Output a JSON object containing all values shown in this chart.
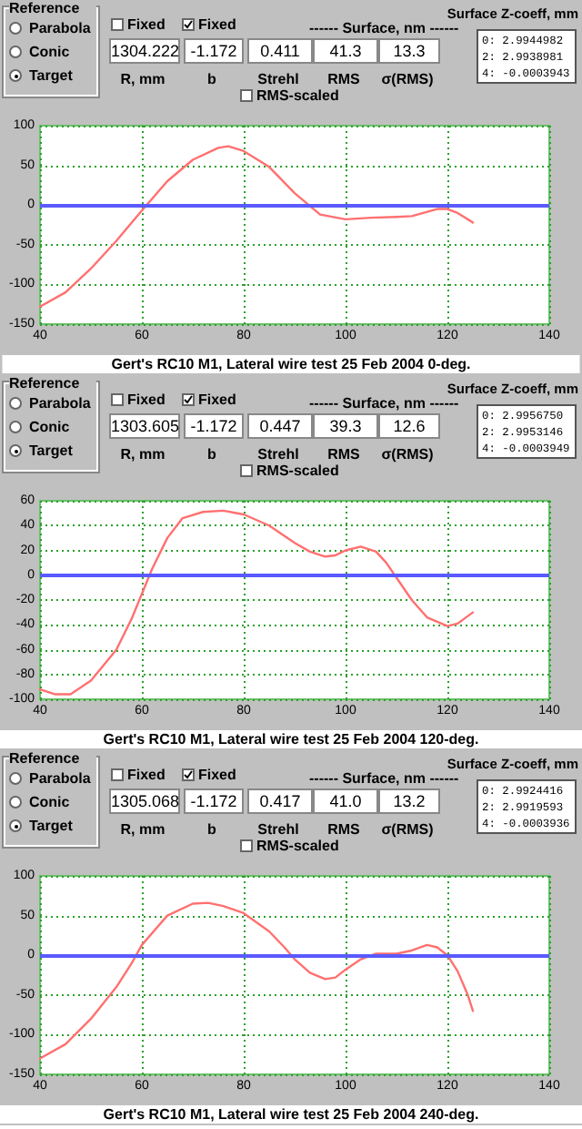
{
  "chart_data": [
    {
      "type": "other",
      "annotations": [
        "Reference",
        "Parabola",
        "Conic",
        "Target",
        "Fixed",
        "Fixed",
        "------ Surface, nm ------",
        "1304.222",
        "-1.172",
        "0.411",
        "41.3",
        "13.3",
        "R, mm",
        "b",
        "Strehl",
        "RMS",
        "σ(RMS)",
        "RMS-scaled",
        "Surface Z-coeff, mm",
        "0:  2.9944982",
        "2:  2.9938981",
        "4:  -0.0003943"
      ]
    },
    {
      "type": "line",
      "title": "Gert's RC10 M1, Lateral wire test 25 Feb 2004 0-deg.",
      "x": [
        40,
        45,
        50,
        55,
        60,
        65,
        70,
        75,
        77,
        80,
        85,
        90,
        95,
        100,
        105,
        110,
        113,
        118,
        120,
        122,
        125
      ],
      "values": [
        -128,
        -110,
        -80,
        -45,
        -7,
        30,
        57,
        72,
        74,
        68,
        48,
        15,
        -12,
        -18,
        -16,
        -15,
        -14,
        -5,
        -5,
        -10,
        -22
      ],
      "color": "#ff7070",
      "xlim": [
        40,
        140
      ],
      "xticks": [
        40,
        60,
        80,
        100,
        120,
        140
      ],
      "ylim": [
        -150,
        100
      ],
      "yticks": [
        -150,
        -100,
        -50,
        0,
        50,
        100
      ],
      "grid": true,
      "marker": "none",
      "ref_lines": [
        {
          "axis": "y",
          "value": 0,
          "color": "#5a5aff"
        }
      ]
    },
    {
      "type": "other",
      "annotations": [
        "Reference",
        "Parabola",
        "Conic",
        "Target",
        "Fixed",
        "Fixed",
        "------ Surface, nm ------",
        "1303.605",
        "-1.172",
        "0.447",
        "39.3",
        "12.6",
        "R, mm",
        "b",
        "Strehl",
        "RMS",
        "σ(RMS)",
        "RMS-scaled",
        "Surface Z-coeff, mm",
        "0:  2.9956750",
        "2:  2.9953146",
        "4:  -0.0003949"
      ]
    },
    {
      "type": "line",
      "title": "Gert's RC10 M1, Lateral wire test 25 Feb 2004 120-deg.",
      "x": [
        40,
        43,
        46,
        50,
        55,
        58,
        60,
        62,
        65,
        68,
        72,
        76,
        80,
        85,
        90,
        93,
        96,
        98,
        100,
        103,
        106,
        108,
        110,
        113,
        116,
        120,
        122,
        125
      ],
      "values": [
        -92,
        -96,
        -96,
        -85,
        -60,
        -35,
        -15,
        5,
        30,
        46,
        51,
        52,
        49,
        40,
        26,
        19,
        15,
        16,
        20,
        23,
        19,
        10,
        -2,
        -20,
        -34,
        -41,
        -39,
        -30
      ],
      "color": "#ff7070",
      "xlim": [
        40,
        140
      ],
      "xticks": [
        40,
        60,
        80,
        100,
        120,
        140
      ],
      "ylim": [
        -100,
        60
      ],
      "yticks": [
        -100,
        -80,
        -60,
        -40,
        -20,
        0,
        20,
        40,
        60
      ],
      "grid": true,
      "marker": "none",
      "ref_lines": [
        {
          "axis": "y",
          "value": 0,
          "color": "#5a5aff"
        }
      ]
    },
    {
      "type": "other",
      "annotations": [
        "Reference",
        "Parabola",
        "Conic",
        "Target",
        "Fixed",
        "Fixed",
        "------ Surface, nm ------",
        "1305.068",
        "-1.172",
        "0.417",
        "41.0",
        "13.2",
        "R, mm",
        "b",
        "Strehl",
        "RMS",
        "σ(RMS)",
        "RMS-scaled",
        "Surface Z-coeff, mm",
        "0:  2.9924416",
        "2:  2.9919593",
        "4:  -0.0003936"
      ]
    },
    {
      "type": "line",
      "title": "Gert's RC10 M1, Lateral wire test 25 Feb 2004 240-deg.",
      "x": [
        40,
        45,
        50,
        55,
        58,
        60,
        65,
        70,
        73,
        76,
        80,
        85,
        88,
        90,
        93,
        96,
        98,
        100,
        103,
        106,
        110,
        113,
        116,
        118,
        120,
        122,
        124,
        125
      ],
      "values": [
        -130,
        -112,
        -80,
        -40,
        -10,
        13,
        50,
        65,
        66,
        62,
        53,
        30,
        10,
        -5,
        -22,
        -30,
        -28,
        -18,
        -5,
        2,
        2,
        6,
        13,
        10,
        0,
        -20,
        -50,
        -70
      ],
      "color": "#ff7070",
      "xlim": [
        40,
        140
      ],
      "xticks": [
        40,
        60,
        80,
        100,
        120,
        140
      ],
      "ylim": [
        -150,
        100
      ],
      "yticks": [
        -150,
        -100,
        -50,
        0,
        50,
        100
      ],
      "grid": true,
      "marker": "none",
      "ref_lines": [
        {
          "axis": "y",
          "value": 0,
          "color": "#5a5aff"
        }
      ]
    }
  ]
}
